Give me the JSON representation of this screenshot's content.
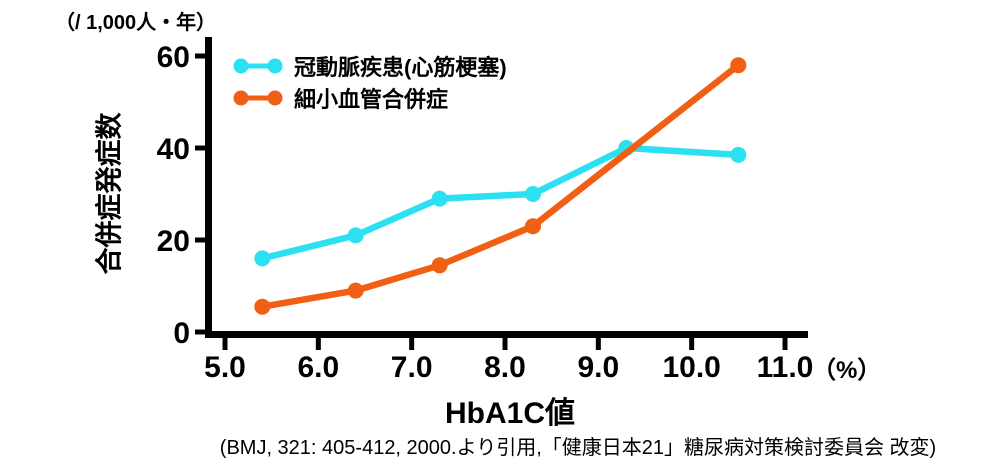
{
  "chart_data": {
    "type": "line",
    "unit_label": "（/ 1,000人・年）",
    "ylabel": "合併症発症数",
    "xlabel": "HbA1C値",
    "x_unit_label": "（%）",
    "x_tick_labels": [
      "5.0",
      "6.0",
      "7.0",
      "8.0",
      "9.0",
      "10.0",
      "11.0"
    ],
    "x_ticks": [
      5.0,
      6.0,
      7.0,
      8.0,
      9.0,
      10.0,
      11.0
    ],
    "y_ticks": [
      0,
      20,
      40,
      60
    ],
    "xlim": [
      4.8,
      11.2
    ],
    "ylim": [
      0,
      64
    ],
    "grid": false,
    "legend_position": "top-left-inside",
    "axis_color": "#000000",
    "series": [
      {
        "name": "冠動脈疾患(心筋梗塞)",
        "color": "#2BE0F0",
        "x": [
          5.4,
          6.4,
          7.3,
          8.3,
          9.3,
          10.5
        ],
        "y": [
          16,
          21,
          29,
          30,
          40,
          38.5
        ]
      },
      {
        "name": "細小血管合併症",
        "color": "#F05F14",
        "x": [
          5.4,
          6.4,
          7.3,
          8.3,
          10.5
        ],
        "y": [
          5.5,
          9,
          14.5,
          23,
          58
        ]
      }
    ],
    "source": "(BMJ, 321: 405-412, 2000.より引用,「健康日本21」糖尿病対策検討委員会 改変)"
  }
}
